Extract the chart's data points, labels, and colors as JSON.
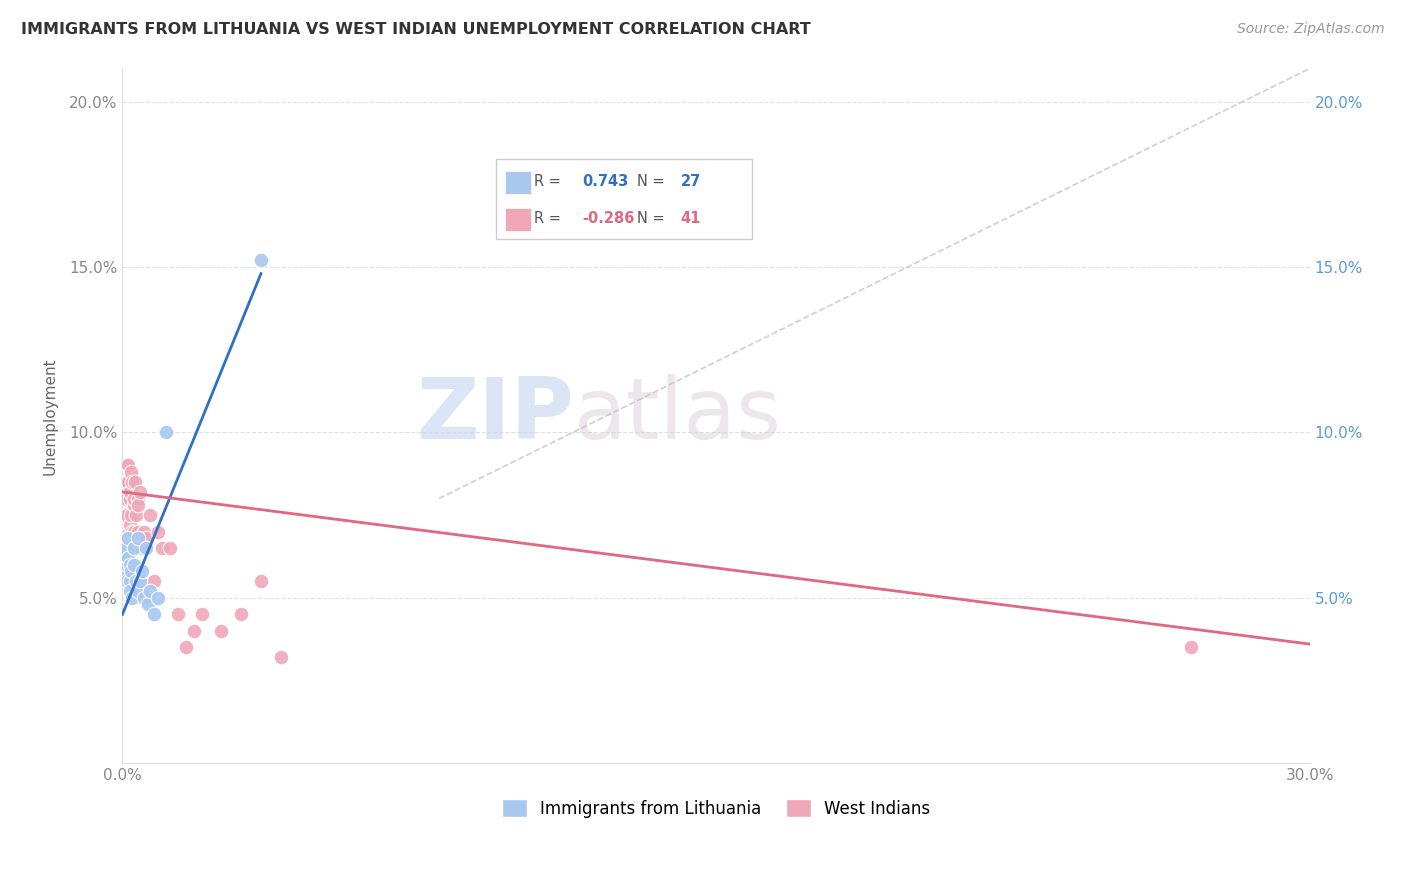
{
  "title": "IMMIGRANTS FROM LITHUANIA VS WEST INDIAN UNEMPLOYMENT CORRELATION CHART",
  "source": "Source: ZipAtlas.com",
  "ylabel": "Unemployment",
  "xlim": [
    0,
    30
  ],
  "ylim": [
    0,
    21
  ],
  "ytick_vals": [
    5,
    10,
    15,
    20
  ],
  "ytick_labels": [
    "5.0%",
    "10.0%",
    "15.0%",
    "20.0%"
  ],
  "blue_R": "0.743",
  "blue_N": "27",
  "pink_R": "-0.286",
  "pink_N": "41",
  "blue_color": "#a8c8f0",
  "pink_color": "#f0a8b8",
  "blue_line_color": "#3070c0",
  "pink_line_color": "#e06880",
  "watermark_zip": "ZIP",
  "watermark_atlas": "atlas",
  "grid_color": "#e0e0e0",
  "blue_points_x": [
    0.05,
    0.08,
    0.1,
    0.12,
    0.12,
    0.15,
    0.15,
    0.18,
    0.18,
    0.2,
    0.22,
    0.25,
    0.28,
    0.3,
    0.35,
    0.38,
    0.4,
    0.45,
    0.5,
    0.55,
    0.6,
    0.65,
    0.7,
    0.8,
    0.9,
    1.1,
    3.5
  ],
  "blue_points_y": [
    6.2,
    6.5,
    5.8,
    6.0,
    5.5,
    6.8,
    6.2,
    5.5,
    6.0,
    5.2,
    5.8,
    5.0,
    6.5,
    6.0,
    5.5,
    6.8,
    5.2,
    5.5,
    5.8,
    5.0,
    6.5,
    4.8,
    5.2,
    4.5,
    5.0,
    10.0,
    15.2
  ],
  "pink_points_x": [
    0.05,
    0.08,
    0.1,
    0.12,
    0.12,
    0.14,
    0.15,
    0.16,
    0.18,
    0.18,
    0.2,
    0.22,
    0.22,
    0.25,
    0.25,
    0.28,
    0.3,
    0.3,
    0.32,
    0.35,
    0.38,
    0.4,
    0.4,
    0.45,
    0.5,
    0.55,
    0.6,
    0.7,
    0.8,
    0.9,
    1.0,
    1.2,
    1.4,
    1.6,
    1.8,
    2.0,
    2.5,
    3.0,
    3.5,
    4.0,
    27.0
  ],
  "pink_points_y": [
    7.5,
    8.0,
    8.5,
    9.0,
    7.5,
    8.5,
    9.0,
    7.0,
    8.0,
    7.2,
    8.2,
    8.8,
    7.5,
    8.5,
    7.0,
    7.8,
    8.0,
    7.0,
    8.5,
    7.5,
    8.0,
    7.8,
    7.0,
    8.2,
    6.5,
    7.0,
    6.8,
    7.5,
    5.5,
    7.0,
    6.5,
    6.5,
    4.5,
    3.5,
    4.0,
    4.5,
    4.0,
    4.5,
    5.5,
    3.2,
    3.5
  ],
  "blue_line_x": [
    0.0,
    3.5
  ],
  "blue_line_y": [
    4.5,
    14.8
  ],
  "pink_line_x": [
    0.0,
    30.0
  ],
  "pink_line_y": [
    8.2,
    3.6
  ],
  "dash_line_x": [
    8.0,
    30.0
  ],
  "dash_line_y": [
    8.0,
    21.0
  ]
}
